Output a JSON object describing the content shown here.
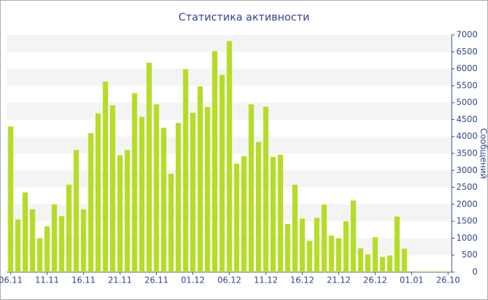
{
  "chart_data": {
    "type": "bar",
    "title": "Статистика активности",
    "y_label": "Сообщений",
    "categories": [
      "06.11",
      null,
      null,
      null,
      null,
      "11.11",
      null,
      null,
      null,
      null,
      "16.11",
      null,
      null,
      null,
      null,
      "21.11",
      null,
      null,
      null,
      null,
      "26.11",
      null,
      null,
      null,
      null,
      "01.12",
      null,
      null,
      null,
      null,
      "06.12",
      null,
      null,
      null,
      null,
      "11.12",
      null,
      null,
      null,
      null,
      "16.12",
      null,
      null,
      null,
      null,
      "21.12",
      null,
      null,
      null,
      null,
      "26.12",
      null,
      null,
      null,
      null,
      "01.01",
      null,
      null,
      null,
      null,
      "26.10"
    ],
    "values": [
      4300,
      1550,
      2350,
      1850,
      1000,
      1350,
      2000,
      1650,
      2580,
      3600,
      1850,
      4100,
      4680,
      5620,
      4920,
      3450,
      3600,
      5280,
      4580,
      6180,
      4950,
      4260,
      2900,
      4400,
      5990,
      4700,
      5480,
      4870,
      6520,
      5820,
      6820,
      3200,
      3420,
      4950,
      3840,
      4880,
      3400,
      3460,
      1420,
      2580,
      1580,
      920,
      1600,
      1990,
      1080,
      1000,
      1500,
      2110,
      700,
      520,
      1030,
      450,
      490,
      1640,
      690,
      20,
      20,
      20,
      20,
      20,
      20
    ],
    "color": "#b5dc27",
    "ylim": [
      0,
      7000
    ],
    "yticks": [
      0,
      500,
      1000,
      1500,
      2000,
      2500,
      3000,
      3500,
      4000,
      4500,
      5000,
      5500,
      6000,
      6500,
      7000
    ],
    "grid": true
  }
}
